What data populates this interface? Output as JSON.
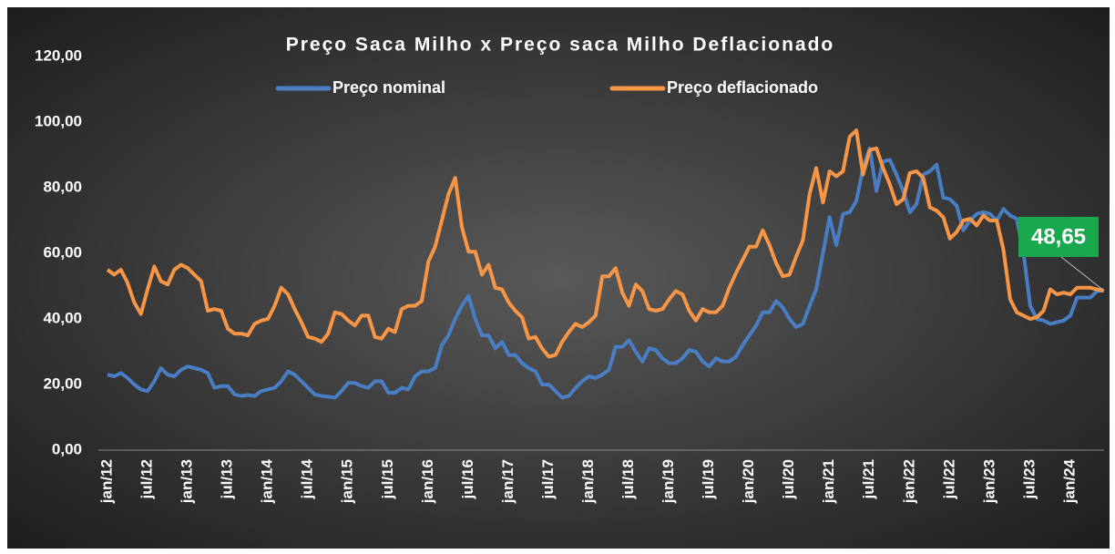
{
  "chart_data": {
    "type": "line",
    "title": "Preço Saca Milho x Preço saca Milho Deflacionado",
    "categories": [
      "jan/12",
      null,
      null,
      null,
      null,
      null,
      "jul/12",
      null,
      null,
      null,
      null,
      null,
      "jan/13",
      null,
      null,
      null,
      null,
      null,
      "jul/13",
      null,
      null,
      null,
      null,
      null,
      "jan/14",
      null,
      null,
      null,
      null,
      null,
      "jul/14",
      null,
      null,
      null,
      null,
      null,
      "jan/15",
      null,
      null,
      null,
      null,
      null,
      "jul/15",
      null,
      null,
      null,
      null,
      null,
      "jan/16",
      null,
      null,
      null,
      null,
      null,
      "jul/16",
      null,
      null,
      null,
      null,
      null,
      "jan/17",
      null,
      null,
      null,
      null,
      null,
      "jul/17",
      null,
      null,
      null,
      null,
      null,
      "jan/18",
      null,
      null,
      null,
      null,
      null,
      "jul/18",
      null,
      null,
      null,
      null,
      null,
      "jan/19",
      null,
      null,
      null,
      null,
      null,
      "jul/19",
      null,
      null,
      null,
      null,
      null,
      "jan/20",
      null,
      null,
      null,
      null,
      null,
      "jul/20",
      null,
      null,
      null,
      null,
      null,
      "jan/21",
      null,
      null,
      null,
      null,
      null,
      "jul/21",
      null,
      null,
      null,
      null,
      null,
      "jan/22",
      null,
      null,
      null,
      null,
      null,
      "jul/22",
      null,
      null,
      null,
      null,
      null,
      "jan/23",
      null,
      null,
      null,
      null,
      null,
      "jul/23",
      null,
      null,
      null,
      null,
      null,
      "jan/24",
      null,
      null,
      null,
      null,
      null
    ],
    "series": [
      {
        "name": "Preço nominal",
        "color": "#4a7ec4",
        "values": [
          23,
          22.5,
          23.5,
          22,
          20,
          18.5,
          18,
          21,
          25,
          23,
          22.5,
          24.5,
          25.5,
          25,
          24.5,
          23.5,
          19,
          19.5,
          19.5,
          17,
          16.5,
          16.8,
          16.5,
          18,
          18.5,
          19,
          21,
          24,
          23,
          21,
          19,
          17,
          16.5,
          16.3,
          16,
          18,
          20.5,
          20.5,
          19.5,
          19,
          21,
          21,
          17.5,
          17.5,
          19,
          18.5,
          22.5,
          24,
          24,
          25,
          32,
          35,
          40,
          44,
          47,
          40,
          35,
          35,
          31,
          33,
          29,
          29,
          26.5,
          25,
          24,
          20,
          20,
          18,
          16,
          16.5,
          19,
          21,
          22.5,
          22,
          23,
          24.5,
          31.5,
          31.5,
          33.5,
          30,
          27,
          31,
          30.5,
          28,
          26.5,
          26.5,
          28,
          30.5,
          30,
          27,
          25.5,
          28,
          27,
          27,
          28.5,
          32,
          35,
          38,
          42,
          42,
          45.5,
          43.5,
          40,
          37.5,
          38.5,
          44,
          49,
          60,
          71,
          62.5,
          72,
          72.5,
          76,
          86,
          92,
          79,
          88,
          88.5,
          84,
          79,
          72.5,
          75,
          84,
          85,
          87,
          77,
          76.5,
          74.5,
          67,
          70,
          72,
          72.5,
          72,
          70,
          73.5,
          71.5,
          70.5,
          60,
          44,
          40,
          39.5,
          38.5,
          39,
          39.5,
          41,
          46.5,
          46.5,
          46.5,
          48.5,
          48.65
        ]
      },
      {
        "name": "Preço deflacionado",
        "color": "#f79646",
        "values": [
          55,
          53.5,
          55,
          51,
          45,
          41.5,
          49,
          56,
          51.5,
          50.5,
          55,
          56.5,
          55.5,
          53.5,
          51.5,
          42.5,
          43,
          42.5,
          37,
          35.5,
          35.5,
          35,
          38.5,
          39.5,
          40,
          44,
          49.5,
          47.5,
          43,
          39,
          34.5,
          34,
          33,
          35.5,
          42,
          41.5,
          39.5,
          38,
          41,
          41,
          34.5,
          34,
          37,
          36,
          43,
          44,
          44,
          45.5,
          57.5,
          62,
          70,
          78,
          83,
          68,
          60.5,
          60.5,
          53.5,
          56.5,
          49.5,
          49,
          45,
          42.5,
          40.5,
          34,
          34.5,
          31,
          28.5,
          29,
          33,
          36,
          38.5,
          37.5,
          39,
          41,
          53,
          53,
          55.5,
          48,
          44,
          50.5,
          48.5,
          43,
          42.5,
          43,
          46,
          48.5,
          47.5,
          42.5,
          39.5,
          43,
          42,
          42,
          44,
          49.5,
          54,
          58,
          62,
          62,
          67,
          62.5,
          57,
          53,
          53.5,
          59,
          64,
          78,
          86,
          75.5,
          85,
          83.5,
          85,
          95.5,
          97.5,
          84,
          91.5,
          92,
          86,
          81,
          75,
          76.5,
          84.5,
          85,
          83,
          74,
          73,
          71,
          64.5,
          66.5,
          70,
          70.5,
          68.5,
          71.5,
          70,
          70,
          61,
          46,
          42,
          41,
          40,
          40.5,
          42.5,
          49,
          47.5,
          48,
          47.5,
          49.5,
          49.5,
          49.5,
          49,
          48.65
        ]
      }
    ],
    "annotations": [
      {
        "value": 48.65,
        "label": "48,65"
      }
    ],
    "ylim": [
      0,
      120
    ],
    "yticks": [
      {
        "value": 0,
        "label": "0,00"
      },
      {
        "value": 20,
        "label": "20,00"
      },
      {
        "value": 40,
        "label": "40,00"
      },
      {
        "value": 60,
        "label": "60,00"
      },
      {
        "value": 80,
        "label": "80,00"
      },
      {
        "value": 100,
        "label": "100,00"
      },
      {
        "value": 120,
        "label": "120,00"
      }
    ],
    "grid": false,
    "legend": "top"
  }
}
